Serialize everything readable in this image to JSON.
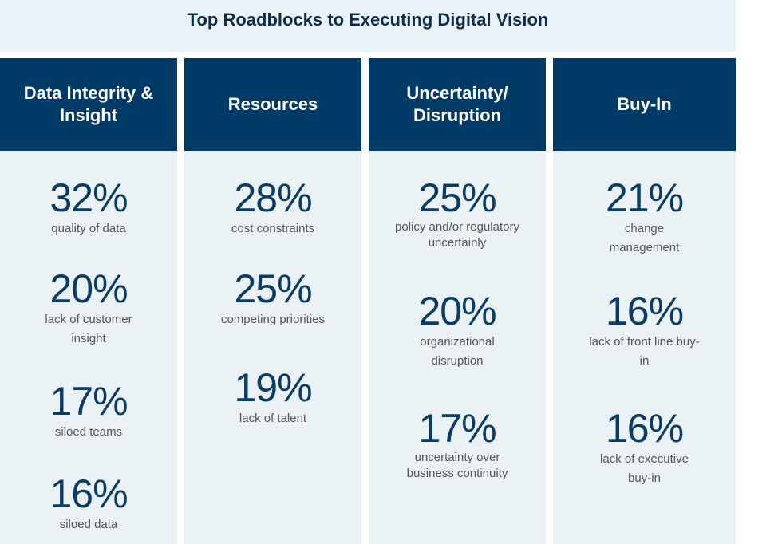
{
  "title": "Top Roadblocks to Executing Digital Vision",
  "colors": {
    "header": "#003a66",
    "panel": "#eaf2f6",
    "number": "#0b3c66",
    "label": "#555555"
  },
  "columns": [
    {
      "heading": "Data Integrity & Insight",
      "stats": [
        {
          "value": "32%",
          "label": "quality of data"
        },
        {
          "value": "20%",
          "label": "lack of customer insight"
        },
        {
          "value": "17%",
          "label": "siloed teams"
        },
        {
          "value": "16%",
          "label": "siloed data"
        }
      ]
    },
    {
      "heading": "Resources",
      "stats": [
        {
          "value": "28%",
          "label": "cost constraints"
        },
        {
          "value": "25%",
          "label": "competing priorities"
        },
        {
          "value": "19%",
          "label": "lack of talent"
        }
      ]
    },
    {
      "heading": "Uncertainty/ Disruption",
      "stats": [
        {
          "value": "25%",
          "label": "policy and/or regulatory uncertainly"
        },
        {
          "value": "20%",
          "label": "organizational disruption"
        },
        {
          "value": "17%",
          "label": "uncertainty over business continuity"
        }
      ]
    },
    {
      "heading": "Buy-In",
      "stats": [
        {
          "value": "21%",
          "label": "change management"
        },
        {
          "value": "16%",
          "label": "lack of front line buy-in"
        },
        {
          "value": "16%",
          "label": "lack of executive buy-in"
        }
      ]
    }
  ]
}
